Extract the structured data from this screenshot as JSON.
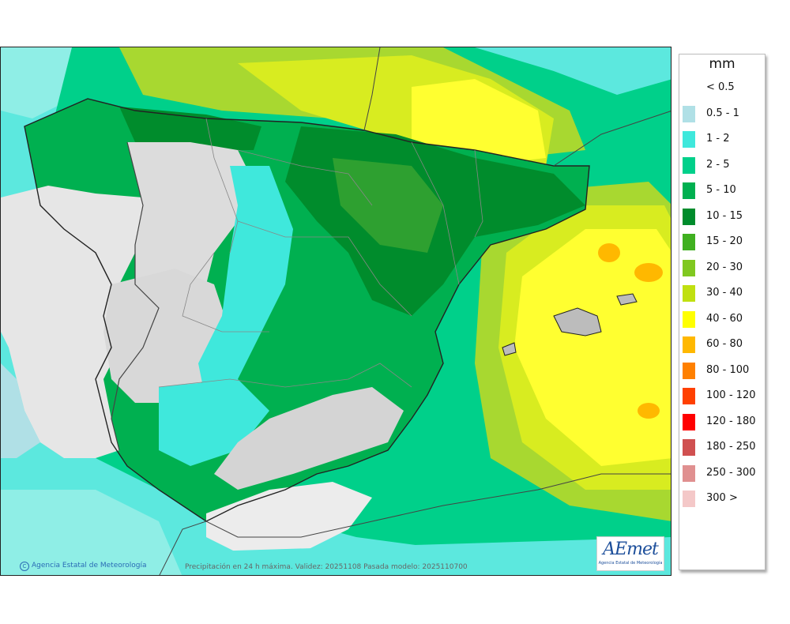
{
  "legend": {
    "unit": "mm",
    "items": [
      {
        "label": "< 0.5",
        "color": "#ffffff"
      },
      {
        "label": "0.5 - 1",
        "color": "#b0e0e6"
      },
      {
        "label": "1 - 2",
        "color": "#3fe8dc"
      },
      {
        "label": "2 - 5",
        "color": "#00d08a"
      },
      {
        "label": "5 - 10",
        "color": "#00b050"
      },
      {
        "label": "10 - 15",
        "color": "#008c2c"
      },
      {
        "label": "15 - 20",
        "color": "#40b020"
      },
      {
        "label": "20 - 30",
        "color": "#80c820"
      },
      {
        "label": "30 - 40",
        "color": "#c0e010"
      },
      {
        "label": "40 - 60",
        "color": "#ffff00"
      },
      {
        "label": "60 - 80",
        "color": "#ffb800"
      },
      {
        "label": "80 - 100",
        "color": "#ff8000"
      },
      {
        "label": "100 - 120",
        "color": "#ff4000"
      },
      {
        "label": "120 - 180",
        "color": "#ff0000"
      },
      {
        "label": "180 - 250",
        "color": "#d05050"
      },
      {
        "label": "250 - 300",
        "color": "#e09090"
      },
      {
        "label": "300 >",
        "color": "#f4c8c8"
      }
    ]
  },
  "map": {
    "credit": "Agencia Estatal de Meteorología",
    "caption": "Precipitación en 24 h máxima. Validez: 20251108 Pasada modelo: 2025110700",
    "logo_brand": "AEmet",
    "logo_sub": "Agencia Estatal de Meteorología",
    "colors": {
      "sea_low": "#7ee8e0",
      "land_dry": "#e4e4e4",
      "border": "#222222",
      "region_border": "#888888"
    }
  }
}
